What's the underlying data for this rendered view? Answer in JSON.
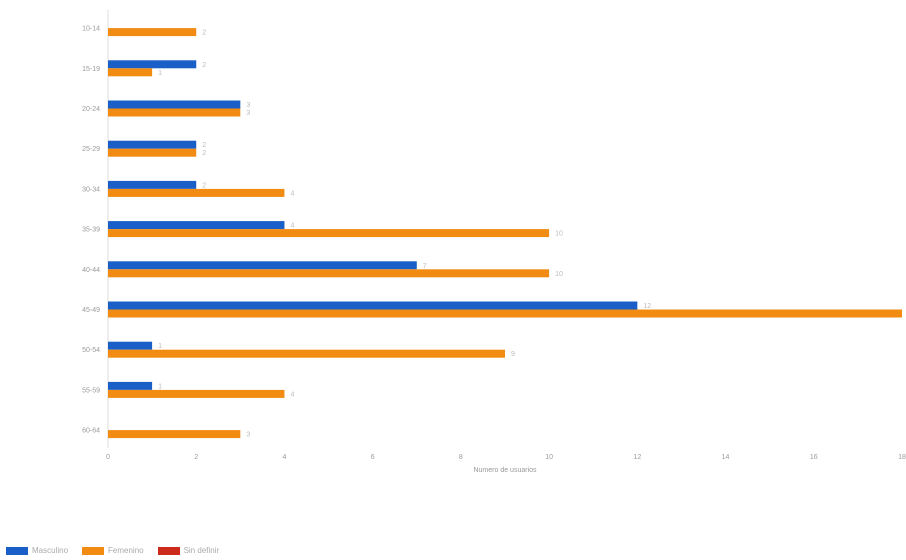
{
  "chart_data": {
    "type": "bar",
    "orientation": "horizontal",
    "title": "",
    "xlabel": "Numero de usuarios",
    "ylabel": "",
    "xlim": [
      0,
      18
    ],
    "xticks": [
      0,
      2,
      4,
      6,
      8,
      10,
      12,
      14,
      16,
      18
    ],
    "categories": [
      "10-14",
      "15-19",
      "20-24",
      "25-29",
      "30-34",
      "35-39",
      "40-44",
      "45-49",
      "50-54",
      "55-59",
      "60-64"
    ],
    "series": [
      {
        "name": "Masculino",
        "color": "#1a5fc8",
        "values": [
          0,
          2,
          3,
          2,
          2,
          4,
          7,
          12,
          1,
          1,
          0
        ]
      },
      {
        "name": "Femenino",
        "color": "#f28b12",
        "values": [
          2,
          1,
          3,
          2,
          4,
          10,
          10,
          18,
          9,
          4,
          3
        ]
      },
      {
        "name": "Sin definir",
        "color": "#cc2a1a",
        "values": [
          0,
          0,
          0,
          0,
          0,
          0,
          0,
          0,
          0,
          0,
          0
        ]
      }
    ],
    "grid": false,
    "legend_position": "bottom-left"
  }
}
